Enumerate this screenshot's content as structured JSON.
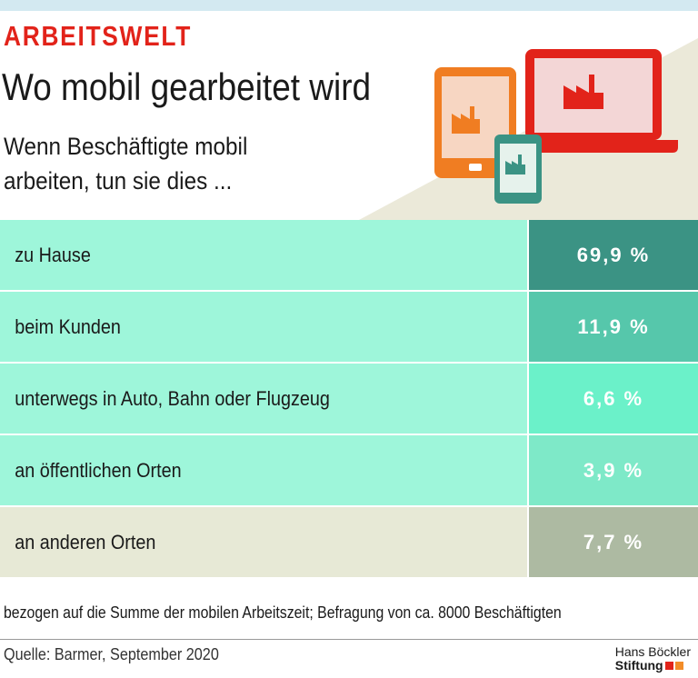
{
  "header": {
    "kicker": "ARBEITSWELT",
    "title": "Wo mobil gearbeitet wird",
    "subtitle": "Wenn Beschäftigte mobil arbeiten, tun sie dies ..."
  },
  "table": {
    "rows": [
      [
        "zu Hause",
        "69,9 %"
      ],
      [
        "beim Kunden",
        "11,9 %"
      ],
      [
        "unterwegs in Auto, Bahn oder Flugzeug",
        "6,6 %"
      ],
      [
        "an öffentlichen Orten",
        "3,9 %"
      ],
      [
        "an anderen Orten",
        "7,7 %"
      ]
    ]
  },
  "footnote": "bezogen auf die Summe der mobilen Arbeitszeit; Befragung von ca. 8000 Beschäftigten",
  "source": "Quelle: Barmer, September 2020",
  "logo": {
    "line1": "Hans Böckler",
    "line2": "Stiftung"
  }
}
